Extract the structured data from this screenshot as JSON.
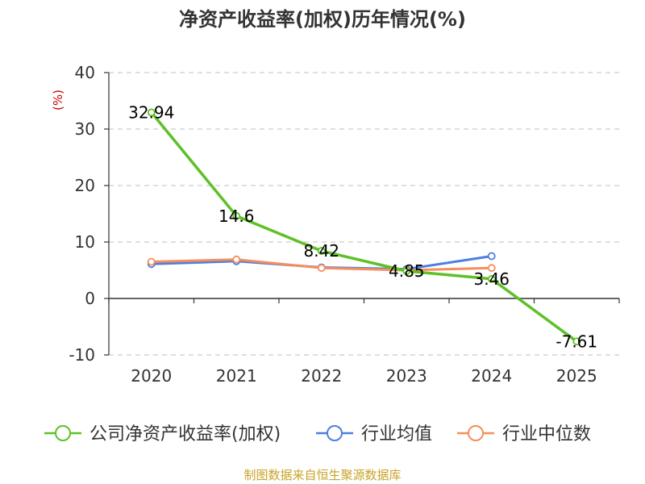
{
  "chart_data": {
    "type": "line",
    "title": "净资产收益率(加权)历年情况(%)",
    "ylabel": "(%)",
    "xlabel": "",
    "categories": [
      "2020",
      "2021",
      "2022",
      "2023",
      "2024",
      "2025"
    ],
    "ylim": [
      -10,
      40
    ],
    "yticks": [
      40,
      30,
      20,
      10,
      0,
      -10
    ],
    "grid": true,
    "legend": "bottom",
    "series": [
      {
        "name": "公司净资产收益率(加权)",
        "color": "#5ec127",
        "values": [
          32.94,
          14.6,
          8.42,
          4.85,
          3.46,
          -7.61
        ],
        "labels": [
          "32.94",
          "14.6",
          "8.42",
          "4.85",
          "3.46",
          "-7.61"
        ]
      },
      {
        "name": "行业均值",
        "color": "#4e7fdc",
        "values": [
          6.1,
          6.6,
          5.5,
          5.2,
          7.5,
          null
        ]
      },
      {
        "name": "行业中位数",
        "color": "#f58e5c",
        "values": [
          6.5,
          6.9,
          5.4,
          5.0,
          5.4,
          null
        ]
      }
    ],
    "source": "制图数据来自恒生聚源数据库"
  }
}
